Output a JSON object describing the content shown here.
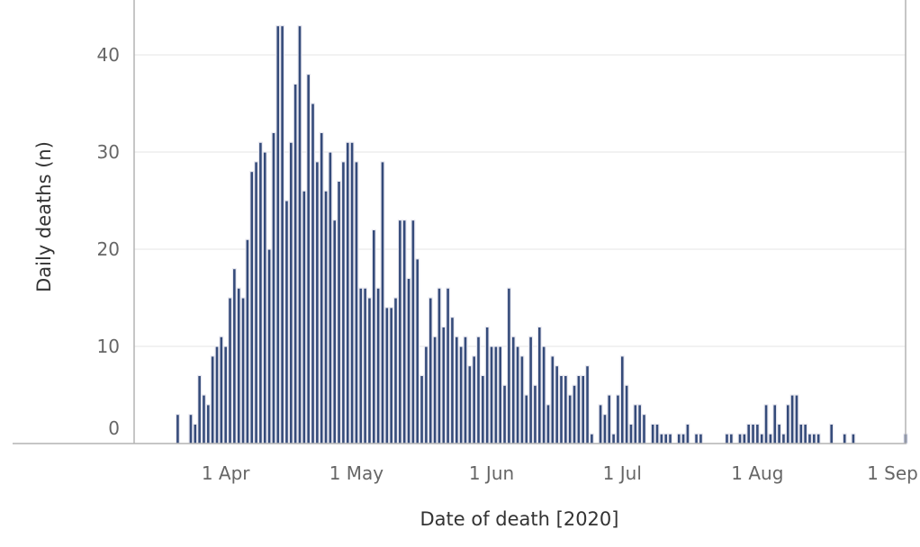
{
  "chart_data": {
    "type": "bar",
    "xlabel": "Date of death [2020]",
    "ylabel": "Daily deaths (n)",
    "ylim": [
      0,
      45
    ],
    "yticks": [
      0,
      10,
      20,
      30,
      40
    ],
    "xlim": [
      "2020-03-11",
      "2020-09-04"
    ],
    "xticks": [
      {
        "date": "2020-04-01",
        "label": "1 Apr"
      },
      {
        "date": "2020-05-01",
        "label": "1 May"
      },
      {
        "date": "2020-06-01",
        "label": "1 Jun"
      },
      {
        "date": "2020-07-01",
        "label": "1 Jul"
      },
      {
        "date": "2020-08-01",
        "label": "1 Aug"
      },
      {
        "date": "2020-09-01",
        "label": "1 Sep"
      }
    ],
    "grid": true,
    "legend": "none",
    "bar_color": "#354b7a",
    "start_date": "2020-03-21",
    "values": [
      3,
      0,
      0,
      3,
      2,
      7,
      5,
      4,
      9,
      10,
      11,
      10,
      15,
      18,
      16,
      15,
      21,
      28,
      29,
      31,
      30,
      20,
      32,
      43,
      43,
      25,
      31,
      37,
      43,
      26,
      38,
      35,
      29,
      32,
      26,
      30,
      23,
      27,
      29,
      31,
      31,
      29,
      16,
      16,
      15,
      22,
      16,
      29,
      14,
      14,
      15,
      23,
      23,
      17,
      23,
      19,
      7,
      10,
      15,
      11,
      16,
      12,
      16,
      13,
      11,
      10,
      11,
      8,
      9,
      11,
      7,
      12,
      10,
      10,
      10,
      6,
      16,
      11,
      10,
      9,
      5,
      11,
      6,
      12,
      10,
      4,
      9,
      8,
      7,
      7,
      5,
      6,
      7,
      7,
      8,
      1,
      0,
      4,
      3,
      5,
      1,
      5,
      9,
      6,
      2,
      4,
      4,
      3,
      0,
      2,
      2,
      1,
      1,
      1,
      0,
      1,
      1,
      2,
      0,
      1,
      1,
      0,
      0,
      0,
      0,
      0,
      1,
      1,
      0,
      1,
      1,
      2,
      2,
      2,
      1,
      4,
      1,
      4,
      2,
      1,
      4,
      5,
      5,
      2,
      2,
      1,
      1,
      1,
      0,
      0,
      2,
      0,
      0,
      1,
      0,
      1,
      0,
      0,
      0,
      0,
      0,
      0,
      0,
      0,
      0,
      0,
      0,
      1
    ]
  }
}
